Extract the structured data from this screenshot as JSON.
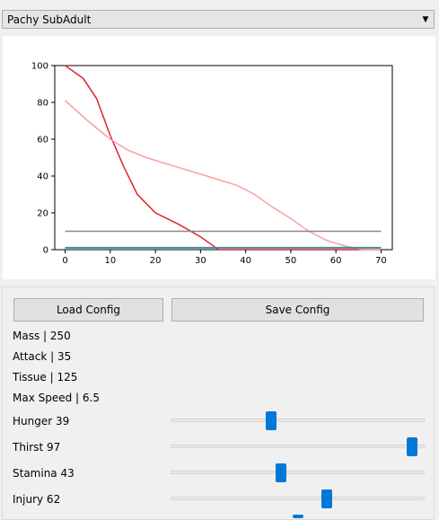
{
  "selector": {
    "value": "Pachy SubAdult",
    "arrow_icon": "chevron-down-icon"
  },
  "chart_data": {
    "type": "line",
    "xlim": [
      -2.3,
      72.5
    ],
    "ylim": [
      0,
      100
    ],
    "xticks": [
      0,
      10,
      20,
      30,
      40,
      50,
      60,
      70
    ],
    "yticks": [
      0,
      20,
      40,
      60,
      80,
      100
    ],
    "series": [
      {
        "color": "#e0232f",
        "x": [
          0,
          4,
          7,
          10,
          13,
          16,
          20,
          25,
          30,
          34,
          38,
          42,
          46,
          50,
          54,
          58,
          62,
          66,
          70
        ],
        "y": [
          100,
          93,
          82,
          62,
          45,
          30,
          20,
          14,
          7,
          0,
          0,
          0,
          0,
          0,
          0,
          0,
          0,
          0,
          0
        ]
      },
      {
        "color": "#f7a0a0",
        "x": [
          0,
          5,
          10,
          14,
          18,
          22,
          26,
          30,
          34,
          38,
          42,
          46,
          50,
          54,
          58,
          62,
          66,
          70
        ],
        "y": [
          81,
          70,
          60,
          54,
          50,
          47,
          44,
          41,
          38,
          35,
          30,
          23,
          17,
          10,
          5,
          2,
          0,
          0
        ]
      },
      {
        "color": "#888888",
        "x": [
          0,
          70
        ],
        "y": [
          10,
          10
        ]
      },
      {
        "color": "#3a8fa0",
        "x": [
          0,
          70
        ],
        "y": [
          1,
          1
        ]
      }
    ]
  },
  "buttons": {
    "load": "Load Config",
    "save": "Save Config"
  },
  "stats": {
    "mass": "Mass | 250",
    "attack": "Attack | 35",
    "tissue": "Tissue | 125",
    "max_speed": "Max Speed | 6.5"
  },
  "sliders": [
    {
      "label": "Hunger 39",
      "value": 39
    },
    {
      "label": "Thirst 97",
      "value": 97
    },
    {
      "label": "Stamina 43",
      "value": 43
    },
    {
      "label": "Injury 62",
      "value": 62
    },
    {
      "value": 50
    }
  ]
}
